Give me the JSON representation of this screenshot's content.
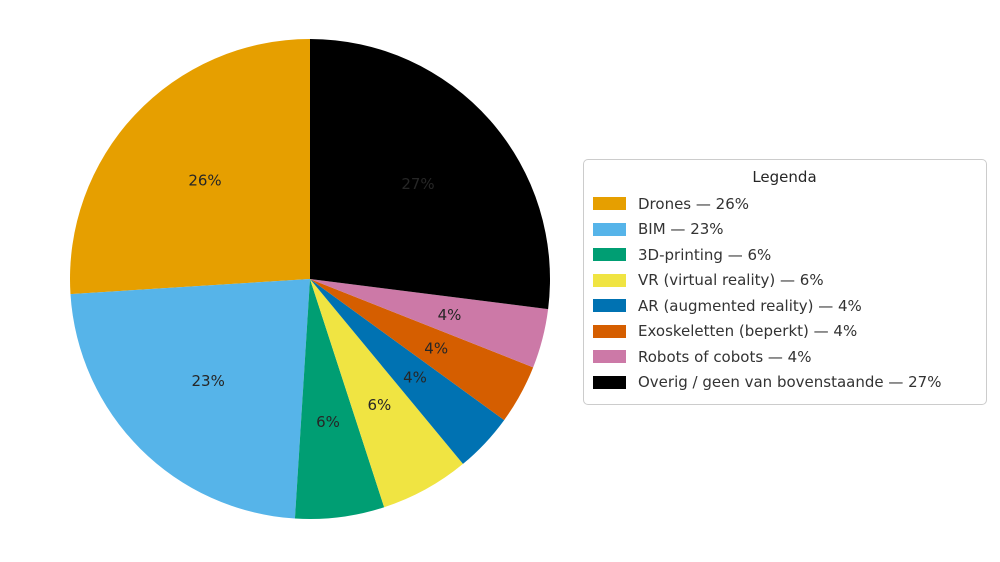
{
  "chart_data": {
    "type": "pie",
    "title": "",
    "legend_title": "Legenda",
    "legend_position": "right",
    "start_angle": 90,
    "counterclockwise": true,
    "label_position_radius": 0.6,
    "label_separator": " — ",
    "background_color": "#ffffff",
    "percent_label_color": "#262626",
    "legend_border_color": "#cccccc",
    "slices": [
      {
        "label": "Drones",
        "value": 26,
        "color": "#E69F00"
      },
      {
        "label": "BIM",
        "value": 23,
        "color": "#56B4E9"
      },
      {
        "label": "3D-printing",
        "value": 6,
        "color": "#009E73"
      },
      {
        "label": "VR (virtual reality)",
        "value": 6,
        "color": "#F0E442"
      },
      {
        "label": "AR (augmented reality)",
        "value": 4,
        "color": "#0072B2"
      },
      {
        "label": "Exoskeletten (beperkt)",
        "value": 4,
        "color": "#D55E00"
      },
      {
        "label": "Robots of cobots",
        "value": 4,
        "color": "#CC79A7"
      },
      {
        "label": "Overig / geen van bovenstaande",
        "value": 27,
        "color": "#000000"
      }
    ]
  }
}
